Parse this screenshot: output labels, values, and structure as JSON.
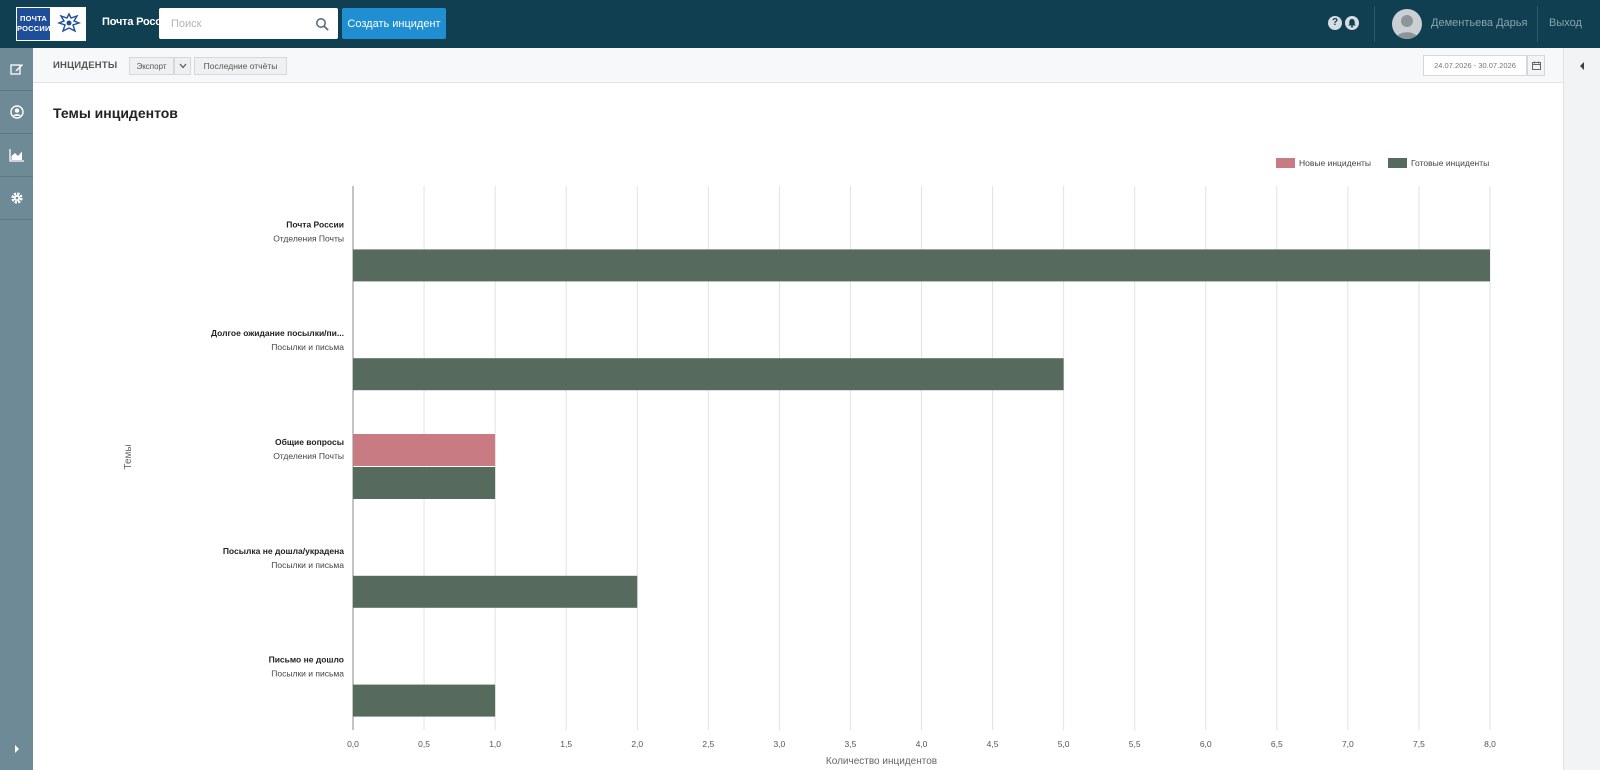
{
  "header": {
    "logo_text_line1": "ПОЧТА",
    "logo_text_line2": "РОССИИ",
    "brand": "Почта России",
    "search_placeholder": "Поиск",
    "create_label": "Создать инцидент",
    "help_glyph": "?",
    "user_name": "Дементьева Дарья",
    "logout_label": "Выход"
  },
  "toolbar": {
    "title": "ИНЦИДЕНТЫ",
    "export_label": "Экспорт",
    "last_reports_label": "Последние отчёты",
    "date_range": "24.07.2026 - 30.07.2026"
  },
  "page": {
    "title": "Темы инцидентов"
  },
  "colors": {
    "topbar": "#113f52",
    "accent": "#1f8fd1",
    "new_incidents": "#c97b84",
    "done_incidents": "#566a5e"
  },
  "chart_data": {
    "type": "bar",
    "orientation": "horizontal",
    "categories": [
      {
        "name": "Почта России",
        "group": "Отделения Почты"
      },
      {
        "name": "Долгое ожидание посылки/пи...",
        "group": "Посылки и письма"
      },
      {
        "name": "Общие вопросы",
        "group": "Отделения Почты"
      },
      {
        "name": "Посылка не дошла/украдена",
        "group": "Посылки и письма"
      },
      {
        "name": "Письмо не дошло",
        "group": "Посылки и письма"
      }
    ],
    "series": [
      {
        "name": "Новые инциденты",
        "color": "#c97b84",
        "values": [
          0,
          0,
          1,
          0,
          0
        ]
      },
      {
        "name": "Готовые инциденты",
        "color": "#566a5e",
        "values": [
          8,
          5,
          1,
          2,
          1
        ]
      }
    ],
    "xlim": [
      0,
      8
    ],
    "xticks": [
      "0,0",
      "0,5",
      "1,0",
      "1,5",
      "2,0",
      "2,5",
      "3,0",
      "3,5",
      "4,0",
      "4,5",
      "5,0",
      "5,5",
      "6,0",
      "6,5",
      "7,0",
      "7,5",
      "8,0"
    ],
    "xlabel": "Количество инцидентов",
    "ylabel": "Темы",
    "grid": true,
    "legend": "top-right"
  }
}
